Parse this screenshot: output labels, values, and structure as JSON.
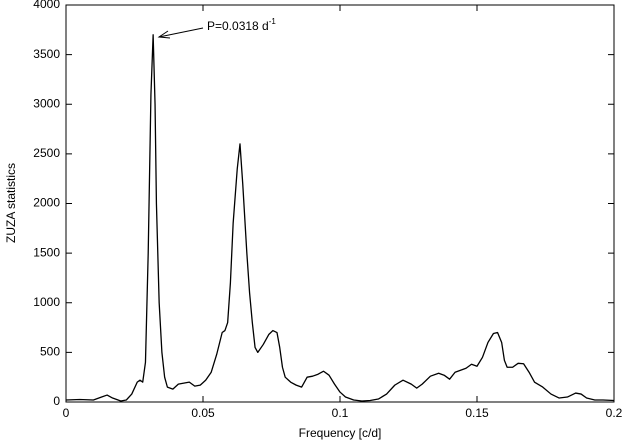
{
  "chart_data": {
    "type": "line",
    "x_label": "Frequency [c/d]",
    "y_label": "ZUZA statistics",
    "annotation": {
      "text": "P=0.0318 d",
      "superscript": "-1"
    },
    "xlim": [
      0,
      0.2
    ],
    "xticks": [
      0,
      0.05,
      0.1,
      0.15,
      0.2
    ],
    "ylim": [
      0,
      4000
    ],
    "yticks": [
      0,
      500,
      1000,
      1500,
      2000,
      2500,
      3000,
      3500,
      4000
    ],
    "grid": false,
    "x": [
      0,
      0.005,
      0.01,
      0.013,
      0.015,
      0.017,
      0.02,
      0.022,
      0.024,
      0.026,
      0.027,
      0.028,
      0.029,
      0.03,
      0.031,
      0.0318,
      0.0325,
      0.033,
      0.034,
      0.035,
      0.036,
      0.037,
      0.039,
      0.041,
      0.043,
      0.045,
      0.047,
      0.049,
      0.051,
      0.053,
      0.055,
      0.057,
      0.058,
      0.059,
      0.06,
      0.061,
      0.0625,
      0.0635,
      0.0645,
      0.066,
      0.067,
      0.068,
      0.069,
      0.07,
      0.072,
      0.074,
      0.0755,
      0.077,
      0.078,
      0.079,
      0.08,
      0.082,
      0.084,
      0.086,
      0.088,
      0.09,
      0.092,
      0.094,
      0.096,
      0.098,
      0.1,
      0.102,
      0.105,
      0.108,
      0.111,
      0.114,
      0.117,
      0.12,
      0.123,
      0.126,
      0.128,
      0.13,
      0.133,
      0.136,
      0.138,
      0.14,
      0.142,
      0.144,
      0.146,
      0.148,
      0.15,
      0.152,
      0.154,
      0.156,
      0.1575,
      0.159,
      0.16,
      0.161,
      0.163,
      0.165,
      0.167,
      0.169,
      0.171,
      0.174,
      0.177,
      0.18,
      0.183,
      0.186,
      0.188,
      0.19,
      0.193,
      0.196,
      0.2
    ],
    "series": [
      {
        "name": "ZUZA",
        "color": "#000000",
        "values": [
          20,
          25,
          20,
          50,
          70,
          40,
          10,
          20,
          80,
          200,
          220,
          200,
          400,
          1500,
          3100,
          3700,
          3000,
          2000,
          1000,
          500,
          250,
          150,
          130,
          180,
          190,
          200,
          160,
          170,
          220,
          300,
          480,
          700,
          720,
          800,
          1200,
          1800,
          2350,
          2600,
          2200,
          1500,
          1100,
          800,
          550,
          500,
          580,
          680,
          720,
          700,
          550,
          350,
          250,
          200,
          170,
          150,
          250,
          260,
          280,
          310,
          270,
          180,
          100,
          50,
          20,
          10,
          15,
          30,
          80,
          170,
          220,
          180,
          140,
          180,
          260,
          290,
          270,
          230,
          300,
          320,
          340,
          380,
          360,
          450,
          600,
          690,
          700,
          600,
          420,
          350,
          350,
          390,
          385,
          300,
          200,
          150,
          80,
          40,
          50,
          90,
          80,
          40,
          20,
          20,
          15
        ]
      }
    ]
  }
}
